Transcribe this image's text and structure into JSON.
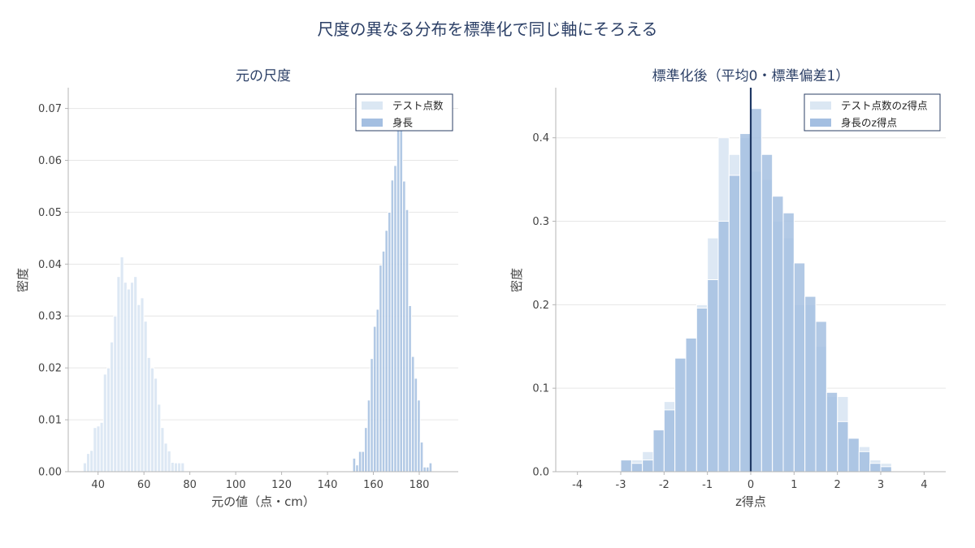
{
  "figure_title": "尺度の異なる分布を標準化で同じ軸にそろえる",
  "chart_data": [
    {
      "type": "histogram",
      "title": "元の尺度",
      "xlabel": "元の値（点・cm）",
      "ylabel": "密度",
      "xlim": [
        27,
        197
      ],
      "ylim": [
        0,
        0.074
      ],
      "xticks": [
        40,
        60,
        80,
        100,
        120,
        140,
        160,
        180
      ],
      "yticks": [
        0.0,
        0.01,
        0.02,
        0.03,
        0.04,
        0.05,
        0.06,
        0.07
      ],
      "ytick_labels": [
        "0.00",
        "0.01",
        "0.02",
        "0.03",
        "0.04",
        "0.05",
        "0.06",
        "0.07"
      ],
      "grid": "horizontal",
      "legend_position": "top-right",
      "series": [
        {
          "name": "テスト点数",
          "color": "#dbe7f3",
          "bin_start": 33.5,
          "bin_width": 1.47,
          "values": [
            0.0017,
            0.0035,
            0.0041,
            0.0085,
            0.0088,
            0.0095,
            0.0188,
            0.02,
            0.025,
            0.03,
            0.0376,
            0.0414,
            0.0365,
            0.0352,
            0.0365,
            0.0376,
            0.0322,
            0.0335,
            0.029,
            0.022,
            0.02,
            0.018,
            0.013,
            0.0085,
            0.0055,
            0.004,
            0.0018,
            0.0017,
            0.0017,
            0.0017
          ]
        },
        {
          "name": "身長",
          "color": "#a4bfe1",
          "bin_start": 151.0,
          "bin_width": 1.28,
          "values": [
            0.0026,
            0.0013,
            0.0039,
            0.0039,
            0.0085,
            0.0138,
            0.0218,
            0.028,
            0.0313,
            0.0398,
            0.0425,
            0.0465,
            0.05,
            0.0562,
            0.059,
            0.0715,
            0.068,
            0.056,
            0.0505,
            0.032,
            0.0222,
            0.018,
            0.0138,
            0.0057,
            0.0009,
            0.0009,
            0.0017
          ]
        }
      ]
    },
    {
      "type": "histogram",
      "title": "標準化後（平均0・標準偏差1）",
      "xlabel": "z得点",
      "ylabel": "密度",
      "xlim": [
        -4.5,
        4.5
      ],
      "ylim": [
        0,
        0.46
      ],
      "xticks": [
        -4,
        -3,
        -2,
        -1,
        0,
        1,
        2,
        3,
        4
      ],
      "yticks": [
        0.0,
        0.1,
        0.2,
        0.3,
        0.4
      ],
      "ytick_labels": [
        "0.0",
        "0.1",
        "0.2",
        "0.3",
        "0.4"
      ],
      "grid": "horizontal",
      "legend_position": "top-right",
      "vline_x": 0,
      "series": [
        {
          "name": "テスト点数のz得点",
          "color": "#dbe7f3",
          "bin_start": -3.0,
          "bin_width": 0.25,
          "values": [
            0.014,
            0.014,
            0.024,
            0.05,
            0.084,
            0.136,
            0.16,
            0.2,
            0.28,
            0.4,
            0.38,
            0.4,
            0.36,
            0.35,
            0.3,
            0.28,
            0.2,
            0.2,
            0.15,
            0.09,
            0.09,
            0.04,
            0.03,
            0.014,
            0.01
          ]
        },
        {
          "name": "身長のz得点",
          "color": "#a4bfe1",
          "bin_start": -3.0,
          "bin_width": 0.25,
          "values": [
            0.014,
            0.01,
            0.014,
            0.05,
            0.074,
            0.136,
            0.16,
            0.196,
            0.23,
            0.3,
            0.355,
            0.405,
            0.435,
            0.38,
            0.33,
            0.31,
            0.25,
            0.21,
            0.18,
            0.095,
            0.06,
            0.04,
            0.024,
            0.01,
            0.006
          ]
        }
      ]
    }
  ]
}
